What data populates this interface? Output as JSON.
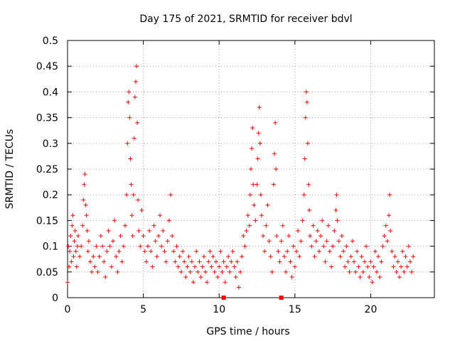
{
  "chart_data": {
    "type": "scatter",
    "title": "Day 175 of 2021, SRMTID for receiver bdvl",
    "xlabel": "GPS time / hours",
    "ylabel": "SRMTID / TECUs",
    "xlim": [
      0,
      24.2
    ],
    "ylim": [
      0,
      0.5
    ],
    "xticks": [
      0,
      5,
      10,
      15,
      20
    ],
    "xtick_labels": [
      "0",
      "5",
      "10",
      "15",
      "20"
    ],
    "yticks": [
      0,
      0.05,
      0.1,
      0.15,
      0.2,
      0.25,
      0.3,
      0.35,
      0.4,
      0.45,
      0.5
    ],
    "ytick_labels": [
      "0",
      "0.05",
      "0.1",
      "0.15",
      "0.2",
      "0.25",
      "0.3",
      "0.35",
      "0.4",
      "0.45",
      "0.5"
    ],
    "grid": true,
    "marker": "plus",
    "color": "#ff0000",
    "series": [
      {
        "name": "SRMTID",
        "points": [
          [
            0.0,
            0.03
          ],
          [
            0.05,
            0.1
          ],
          [
            0.1,
            0.06
          ],
          [
            0.15,
            0.09
          ],
          [
            0.2,
            0.12
          ],
          [
            0.25,
            0.07
          ],
          [
            0.3,
            0.14
          ],
          [
            0.35,
            0.16
          ],
          [
            0.4,
            0.08
          ],
          [
            0.45,
            0.11
          ],
          [
            0.5,
            0.13
          ],
          [
            0.55,
            0.09
          ],
          [
            0.6,
            0.06
          ],
          [
            0.65,
            0.1
          ],
          [
            0.7,
            0.12
          ],
          [
            0.8,
            0.08
          ],
          [
            0.9,
            0.1
          ],
          [
            1.0,
            0.14
          ],
          [
            1.05,
            0.19
          ],
          [
            1.1,
            0.22
          ],
          [
            1.15,
            0.24
          ],
          [
            1.2,
            0.18
          ],
          [
            1.25,
            0.16
          ],
          [
            1.3,
            0.13
          ],
          [
            1.35,
            0.09
          ],
          [
            1.4,
            0.11
          ],
          [
            1.5,
            0.07
          ],
          [
            1.6,
            0.05
          ],
          [
            1.7,
            0.08
          ],
          [
            1.8,
            0.06
          ],
          [
            1.9,
            0.1
          ],
          [
            2.0,
            0.05
          ],
          [
            2.1,
            0.08
          ],
          [
            2.2,
            0.12
          ],
          [
            2.3,
            0.1
          ],
          [
            2.4,
            0.07
          ],
          [
            2.5,
            0.04
          ],
          [
            2.6,
            0.09
          ],
          [
            2.7,
            0.13
          ],
          [
            2.8,
            0.1
          ],
          [
            2.9,
            0.06
          ],
          [
            3.0,
            0.11
          ],
          [
            3.1,
            0.15
          ],
          [
            3.2,
            0.08
          ],
          [
            3.3,
            0.05
          ],
          [
            3.4,
            0.09
          ],
          [
            3.5,
            0.12
          ],
          [
            3.6,
            0.07
          ],
          [
            3.7,
            0.1
          ],
          [
            3.8,
            0.14
          ],
          [
            3.9,
            0.2
          ],
          [
            3.95,
            0.3
          ],
          [
            4.0,
            0.38
          ],
          [
            4.05,
            0.4
          ],
          [
            4.1,
            0.35
          ],
          [
            4.15,
            0.27
          ],
          [
            4.2,
            0.22
          ],
          [
            4.25,
            0.16
          ],
          [
            4.3,
            0.12
          ],
          [
            4.35,
            0.2
          ],
          [
            4.4,
            0.31
          ],
          [
            4.45,
            0.39
          ],
          [
            4.5,
            0.42
          ],
          [
            4.55,
            0.45
          ],
          [
            4.6,
            0.34
          ],
          [
            4.65,
            0.19
          ],
          [
            4.7,
            0.13
          ],
          [
            4.8,
            0.1
          ],
          [
            4.9,
            0.17
          ],
          [
            5.0,
            0.12
          ],
          [
            5.1,
            0.09
          ],
          [
            5.2,
            0.07
          ],
          [
            5.3,
            0.1
          ],
          [
            5.4,
            0.13
          ],
          [
            5.5,
            0.09
          ],
          [
            5.6,
            0.06
          ],
          [
            5.7,
            0.14
          ],
          [
            5.8,
            0.11
          ],
          [
            5.9,
            0.08
          ],
          [
            6.0,
            0.12
          ],
          [
            6.1,
            0.16
          ],
          [
            6.2,
            0.1
          ],
          [
            6.3,
            0.13
          ],
          [
            6.4,
            0.09
          ],
          [
            6.5,
            0.07
          ],
          [
            6.6,
            0.11
          ],
          [
            6.7,
            0.15
          ],
          [
            6.8,
            0.2
          ],
          [
            6.9,
            0.12
          ],
          [
            7.0,
            0.09
          ],
          [
            7.1,
            0.07
          ],
          [
            7.2,
            0.1
          ],
          [
            7.3,
            0.06
          ],
          [
            7.4,
            0.08
          ],
          [
            7.5,
            0.05
          ],
          [
            7.6,
            0.09
          ],
          [
            7.7,
            0.07
          ],
          [
            7.8,
            0.04
          ],
          [
            7.9,
            0.06
          ],
          [
            8.0,
            0.08
          ],
          [
            8.1,
            0.05
          ],
          [
            8.2,
            0.07
          ],
          [
            8.3,
            0.03
          ],
          [
            8.4,
            0.06
          ],
          [
            8.5,
            0.09
          ],
          [
            8.6,
            0.05
          ],
          [
            8.7,
            0.07
          ],
          [
            8.8,
            0.04
          ],
          [
            8.9,
            0.06
          ],
          [
            9.0,
            0.08
          ],
          [
            9.1,
            0.05
          ],
          [
            9.2,
            0.03
          ],
          [
            9.3,
            0.07
          ],
          [
            9.4,
            0.09
          ],
          [
            9.5,
            0.06
          ],
          [
            9.6,
            0.08
          ],
          [
            9.7,
            0.05
          ],
          [
            9.8,
            0.07
          ],
          [
            9.9,
            0.04
          ],
          [
            10.0,
            0.06
          ],
          [
            10.1,
            0.09
          ],
          [
            10.2,
            0.05
          ],
          [
            10.3,
            0.07
          ],
          [
            10.4,
            0.03
          ],
          [
            10.5,
            0.06
          ],
          [
            10.6,
            0.08
          ],
          [
            10.7,
            0.05
          ],
          [
            10.8,
            0.07
          ],
          [
            10.9,
            0.09
          ],
          [
            11.0,
            0.06
          ],
          [
            11.1,
            0.04
          ],
          [
            11.2,
            0.07
          ],
          [
            11.3,
            0.02
          ],
          [
            11.4,
            0.05
          ],
          [
            11.5,
            0.08
          ],
          [
            11.6,
            0.12
          ],
          [
            11.7,
            0.1
          ],
          [
            11.8,
            0.13
          ],
          [
            11.9,
            0.16
          ],
          [
            12.0,
            0.14
          ],
          [
            12.05,
            0.2
          ],
          [
            12.1,
            0.25
          ],
          [
            12.15,
            0.29
          ],
          [
            12.2,
            0.33
          ],
          [
            12.25,
            0.22
          ],
          [
            12.3,
            0.18
          ],
          [
            12.4,
            0.15
          ],
          [
            12.5,
            0.22
          ],
          [
            12.55,
            0.27
          ],
          [
            12.6,
            0.32
          ],
          [
            12.65,
            0.37
          ],
          [
            12.7,
            0.3
          ],
          [
            12.75,
            0.2
          ],
          [
            12.8,
            0.16
          ],
          [
            12.9,
            0.12
          ],
          [
            13.0,
            0.09
          ],
          [
            13.1,
            0.14
          ],
          [
            13.2,
            0.18
          ],
          [
            13.3,
            0.11
          ],
          [
            13.4,
            0.08
          ],
          [
            13.5,
            0.05
          ],
          [
            13.6,
            0.22
          ],
          [
            13.65,
            0.28
          ],
          [
            13.7,
            0.34
          ],
          [
            13.75,
            0.25
          ],
          [
            13.8,
            0.12
          ],
          [
            13.9,
            0.09
          ],
          [
            14.0,
            0.07
          ],
          [
            14.1,
            0.11
          ],
          [
            14.2,
            0.14
          ],
          [
            14.3,
            0.08
          ],
          [
            14.4,
            0.05
          ],
          [
            14.5,
            0.09
          ],
          [
            14.6,
            0.12
          ],
          [
            14.7,
            0.07
          ],
          [
            14.8,
            0.04
          ],
          [
            14.9,
            0.1
          ],
          [
            15.0,
            0.06
          ],
          [
            15.1,
            0.09
          ],
          [
            15.2,
            0.13
          ],
          [
            15.3,
            0.08
          ],
          [
            15.4,
            0.11
          ],
          [
            15.5,
            0.15
          ],
          [
            15.6,
            0.2
          ],
          [
            15.65,
            0.27
          ],
          [
            15.7,
            0.35
          ],
          [
            15.75,
            0.4
          ],
          [
            15.8,
            0.38
          ],
          [
            15.85,
            0.3
          ],
          [
            15.9,
            0.22
          ],
          [
            15.95,
            0.17
          ],
          [
            16.0,
            0.12
          ],
          [
            16.1,
            0.1
          ],
          [
            16.2,
            0.14
          ],
          [
            16.3,
            0.08
          ],
          [
            16.4,
            0.11
          ],
          [
            16.5,
            0.13
          ],
          [
            16.6,
            0.09
          ],
          [
            16.7,
            0.12
          ],
          [
            16.8,
            0.15
          ],
          [
            16.9,
            0.1
          ],
          [
            17.0,
            0.07
          ],
          [
            17.1,
            0.11
          ],
          [
            17.2,
            0.14
          ],
          [
            17.3,
            0.09
          ],
          [
            17.4,
            0.06
          ],
          [
            17.5,
            0.1
          ],
          [
            17.6,
            0.13
          ],
          [
            17.7,
            0.17
          ],
          [
            17.75,
            0.2
          ],
          [
            17.8,
            0.15
          ],
          [
            17.9,
            0.11
          ],
          [
            18.0,
            0.08
          ],
          [
            18.1,
            0.12
          ],
          [
            18.2,
            0.09
          ],
          [
            18.3,
            0.06
          ],
          [
            18.4,
            0.1
          ],
          [
            18.5,
            0.07
          ],
          [
            18.6,
            0.05
          ],
          [
            18.7,
            0.08
          ],
          [
            18.8,
            0.11
          ],
          [
            18.9,
            0.07
          ],
          [
            19.0,
            0.05
          ],
          [
            19.1,
            0.09
          ],
          [
            19.2,
            0.06
          ],
          [
            19.3,
            0.04
          ],
          [
            19.4,
            0.08
          ],
          [
            19.5,
            0.05
          ],
          [
            19.6,
            0.07
          ],
          [
            19.7,
            0.1
          ],
          [
            19.8,
            0.06
          ],
          [
            19.9,
            0.04
          ],
          [
            20.0,
            0.07
          ],
          [
            20.1,
            0.03
          ],
          [
            20.2,
            0.06
          ],
          [
            20.3,
            0.09
          ],
          [
            20.4,
            0.05
          ],
          [
            20.5,
            0.08
          ],
          [
            20.6,
            0.04
          ],
          [
            20.7,
            0.07
          ],
          [
            20.8,
            0.1
          ],
          [
            20.9,
            0.12
          ],
          [
            21.0,
            0.14
          ],
          [
            21.1,
            0.11
          ],
          [
            21.2,
            0.16
          ],
          [
            21.25,
            0.2
          ],
          [
            21.3,
            0.13
          ],
          [
            21.4,
            0.09
          ],
          [
            21.5,
            0.06
          ],
          [
            21.6,
            0.08
          ],
          [
            21.7,
            0.05
          ],
          [
            21.8,
            0.07
          ],
          [
            21.9,
            0.04
          ],
          [
            22.0,
            0.06
          ],
          [
            22.1,
            0.09
          ],
          [
            22.2,
            0.05
          ],
          [
            22.3,
            0.08
          ],
          [
            22.4,
            0.06
          ],
          [
            22.5,
            0.1
          ],
          [
            22.6,
            0.07
          ],
          [
            22.7,
            0.05
          ],
          [
            22.8,
            0.08
          ]
        ]
      }
    ],
    "markers_at_zero": [
      10.3,
      14.1
    ]
  }
}
